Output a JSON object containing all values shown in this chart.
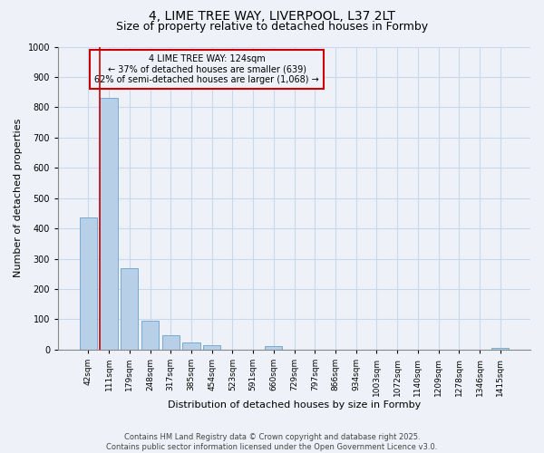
{
  "title": "4, LIME TREE WAY, LIVERPOOL, L37 2LT",
  "subtitle": "Size of property relative to detached houses in Formby",
  "xlabel": "Distribution of detached houses by size in Formby",
  "ylabel": "Number of detached properties",
  "bar_labels": [
    "42sqm",
    "111sqm",
    "179sqm",
    "248sqm",
    "317sqm",
    "385sqm",
    "454sqm",
    "523sqm",
    "591sqm",
    "660sqm",
    "729sqm",
    "797sqm",
    "866sqm",
    "934sqm",
    "1003sqm",
    "1072sqm",
    "1140sqm",
    "1209sqm",
    "1278sqm",
    "1346sqm",
    "1415sqm"
  ],
  "bar_values": [
    435,
    830,
    270,
    95,
    47,
    22,
    13,
    0,
    0,
    10,
    0,
    0,
    0,
    0,
    0,
    0,
    0,
    0,
    0,
    0,
    5
  ],
  "bar_color": "#b8cfe8",
  "bar_edge_color": "#7aaad0",
  "annotation_title": "4 LIME TREE WAY: 124sqm",
  "annotation_line1": "← 37% of detached houses are smaller (639)",
  "annotation_line2": "62% of semi-detached houses are larger (1,068) →",
  "annotation_box_color": "#cc0000",
  "ylim": [
    0,
    1000
  ],
  "yticks": [
    0,
    100,
    200,
    300,
    400,
    500,
    600,
    700,
    800,
    900,
    1000
  ],
  "grid_color": "#c8d8ee",
  "background_color": "#eef2f8",
  "footer_line1": "Contains HM Land Registry data © Crown copyright and database right 2025.",
  "footer_line2": "Contains public sector information licensed under the Open Government Licence v3.0.",
  "title_fontsize": 10,
  "subtitle_fontsize": 9,
  "tick_fontsize": 6.5,
  "label_fontsize": 8,
  "annotation_fontsize": 7,
  "footer_fontsize": 6
}
